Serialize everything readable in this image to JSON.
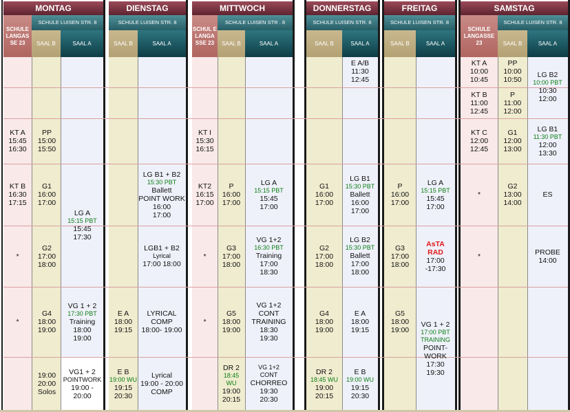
{
  "days": [
    {
      "name": "MONTAG",
      "schule": "SCHULE LANGAS SE 23",
      "luisen": "SCHULE LUISEN STR. 8",
      "saal_b": "SAAL B",
      "saal_a": "SAAL A"
    },
    {
      "name": "DIENSTAG",
      "luisen": "SCHULE LUISEN STR. 8",
      "saal_b": "SAAL B",
      "saal_a": "SAAL A"
    },
    {
      "name": "MITTWOCH",
      "schule": "SCHUL E LANGA SSE 23",
      "luisen": "SCHULE LUISEN STR . 8",
      "saal_b": "SAAL B",
      "saal_a": "SAAL A"
    },
    {
      "name": "DONNERSTAG",
      "luisen": "SCHULE LUISEN STR. 8",
      "saal_b": "SAAL B",
      "saal_a": "SAAL A"
    },
    {
      "name": "FREITAG",
      "luisen": "SCHULE LUISEN STR. 8",
      "saal_b": "SAAL B",
      "saal_a": "SAAL A"
    },
    {
      "name": "SAMSTAG",
      "schule": "SCHULE LANGASSE 23",
      "luisen": "SCHULE LUISEN STR. 8",
      "saal_b": "SAAL B",
      "saal_a": "SAAL A"
    }
  ],
  "entries": {
    "mo_l1": [
      "KT A",
      "15:45",
      "16:30"
    ],
    "mo_l2": [
      "KT B",
      "16:30",
      "17:15"
    ],
    "mo_l3": "*",
    "mo_l4": "*",
    "mo_b1": [
      "PP",
      "15:00",
      "15:50"
    ],
    "mo_b2": [
      "G1",
      "16:00",
      "17:00"
    ],
    "mo_b3": [
      "G2",
      "17:00",
      "18:00"
    ],
    "mo_b4": [
      "G4",
      "18:00",
      "19:00"
    ],
    "mo_b5": [
      "19:00",
      "20:00",
      "Solos"
    ],
    "mo_a1": {
      "t": "LG  A",
      "g": "15:15 PBT",
      "r": [
        "15:45",
        "17:30"
      ]
    },
    "mo_a2": {
      "t": "VG 1 + 2",
      "g": "17:30 PBT",
      "r": [
        "Training",
        "18:00",
        "19:00"
      ]
    },
    "mo_a3": {
      "t": "VG1 + 2",
      "s": "POINTWORK",
      "r": [
        "19:00 -",
        "20:00"
      ]
    },
    "di_b1": [
      "E A",
      "18:00",
      "19:15"
    ],
    "di_b2": {
      "t": "E B",
      "g": "19:00 WU",
      "r": [
        "19:15",
        "20:30"
      ]
    },
    "di_a1": {
      "t": "LG B1 + B2",
      "g": "15:30 PBT",
      "r": [
        "Ballett",
        "POINT WORK",
        "16:00",
        "17:00"
      ]
    },
    "di_a2": {
      "t": "LGB1 + B2",
      "s": "Lyrical",
      "r": [
        "17:00 18:00"
      ]
    },
    "di_a3": [
      "LYRICAL",
      "COMP",
      "18:00- 19:00"
    ],
    "di_a4": [
      "Lyrical",
      "19:00 - 20:00",
      "COMP"
    ],
    "mi_l1": [
      "KT I",
      "15:30",
      "16:15"
    ],
    "mi_l2": [
      "KT2",
      "16:15",
      "17:00"
    ],
    "mi_l3": "*",
    "mi_l4": "*",
    "mi_b1": [
      "P",
      "16:00",
      "17:00"
    ],
    "mi_b2": [
      "G3",
      "17:00",
      "18:00"
    ],
    "mi_b3": [
      "G5",
      "18:00",
      "19:00"
    ],
    "mi_b4": {
      "t": "DR 2",
      "g": "18:45 WU",
      "r": [
        "19:00",
        "20:15"
      ]
    },
    "mi_a1": {
      "t": "LG A",
      "g": "15:15 PBT",
      "r": [
        "15:45",
        "17:00"
      ]
    },
    "mi_a2": {
      "t": "VG 1+2",
      "g": "16:30 PBT",
      "r": [
        "Training",
        "17:00",
        "18:30"
      ]
    },
    "mi_a3": [
      "VG 1+2",
      "CONT",
      "TRAINING",
      "18:30",
      "19:30"
    ],
    "mi_a4": {
      "s": "VG 1+2",
      "r": [
        "CONT",
        "CHORREO",
        "19:30",
        "20:30"
      ]
    },
    "do_b1": [
      "G1",
      "16:00",
      "17:00"
    ],
    "do_b2": [
      "G2",
      "17:00",
      "18:00"
    ],
    "do_b3": [
      "G4",
      "18:00",
      "19:00"
    ],
    "do_b4": {
      "t": "DR 2",
      "g": "18:45 WU",
      "r": [
        "19:00",
        "20:15"
      ]
    },
    "do_a0": [
      "E A/B",
      "11:30",
      "12:45"
    ],
    "do_a1": {
      "t": "LG  B1",
      "g": "15:30 PBT",
      "r": [
        "Ballett",
        "16:00",
        "17:00"
      ]
    },
    "do_a2": {
      "t": "LG B2",
      "g": "15:30 PBT",
      "r": [
        "Ballett",
        "17:00",
        "18:00"
      ]
    },
    "do_a3": [
      "E A",
      "18:00",
      "19:15"
    ],
    "do_a4": {
      "t": "E B",
      "g": "19:00 WU",
      "r": [
        "19:15",
        "20:30"
      ]
    },
    "fr_b1": [
      "P",
      "16:00",
      "17:00"
    ],
    "fr_b2": [
      "G3",
      "17:00",
      "18:00"
    ],
    "fr_b3": [
      "G5",
      "18:00",
      "19:00"
    ],
    "fr_a1": {
      "t": "LG  A",
      "g": "15:15 PBT",
      "r": [
        "15:45",
        "17:00"
      ]
    },
    "fr_a2": {
      "red": [
        "AsTA",
        "RAD"
      ],
      "r": [
        "17:00",
        "-17:30"
      ]
    },
    "fr_a3": {
      "t": "VG 1 + 2",
      "g": "17:00 PBT TRAINING",
      "r": [
        "POINT-",
        "WORK",
        "17:30",
        "19:30"
      ]
    },
    "sa_l1": [
      "KT A",
      "10:00",
      "10:45"
    ],
    "sa_l2": [
      "KT B",
      "11:00",
      "12:45"
    ],
    "sa_l3": [
      "KT C",
      "12:00",
      "12:45"
    ],
    "sa_l4": "*",
    "sa_l5": "*",
    "sa_b1": [
      "PP",
      "10:00",
      "10:50"
    ],
    "sa_b2": [
      "P",
      "11:00",
      "12:00"
    ],
    "sa_b3": [
      "G1",
      "12:00",
      "13:00"
    ],
    "sa_b4": [
      "G2",
      "13:00",
      "14:00"
    ],
    "sa_a1": {
      "t": "LG B2",
      "g": "10:00 PBT",
      "r": [
        "10:30",
        "12:00"
      ]
    },
    "sa_a2": {
      "t": "LG B1",
      "g": "11:30 PBT",
      "r": [
        "12:00",
        "13:30"
      ]
    },
    "sa_a3": [
      "ES"
    ],
    "sa_a4": [
      "PROBE",
      "14:00"
    ]
  }
}
